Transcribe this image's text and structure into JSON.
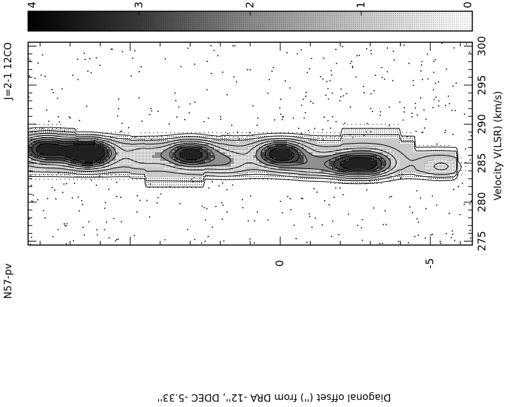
{
  "chart_data": {
    "type": "heatmap",
    "title": "N57-pv",
    "line_label": "J=2-1 12CO",
    "xlabel": "Diagonal offset ('') from DRA -12'', DDEC -5.33''",
    "ylabel": "Velocity V(LSR) (km/s)",
    "xlim": [
      8.4,
      -6.4
    ],
    "ylim": [
      274.5,
      300.5
    ],
    "x_ticks": [
      0,
      -5
    ],
    "y_ticks": [
      275,
      280,
      285,
      290,
      295,
      300
    ],
    "colorbar": {
      "ticks": [
        4,
        3,
        2,
        1,
        0
      ],
      "range": [
        4,
        0
      ]
    },
    "peaks": [
      {
        "x": 7.8,
        "v": 286.8,
        "amp": 2.6
      },
      {
        "x": 6.4,
        "v": 286.3,
        "amp": 3.7
      },
      {
        "x": 4.5,
        "v": 286.0,
        "amp": 0.8
      },
      {
        "x": 3.0,
        "v": 286.2,
        "amp": 2.6
      },
      {
        "x": 1.8,
        "v": 285.2,
        "amp": 0.9
      },
      {
        "x": 0.0,
        "v": 286.2,
        "amp": 2.7
      },
      {
        "x": -2.2,
        "v": 284.8,
        "amp": 1.8
      },
      {
        "x": -3.0,
        "v": 284.9,
        "amp": 2.1
      },
      {
        "x": -1.0,
        "v": 284.8,
        "amp": 0.9
      },
      {
        "x": -5.4,
        "v": 284.5,
        "amp": 0.7
      }
    ],
    "contour_levels": [
      0.35,
      0.7,
      1.1,
      1.5,
      1.9,
      2.3,
      2.7,
      3.1
    ]
  }
}
